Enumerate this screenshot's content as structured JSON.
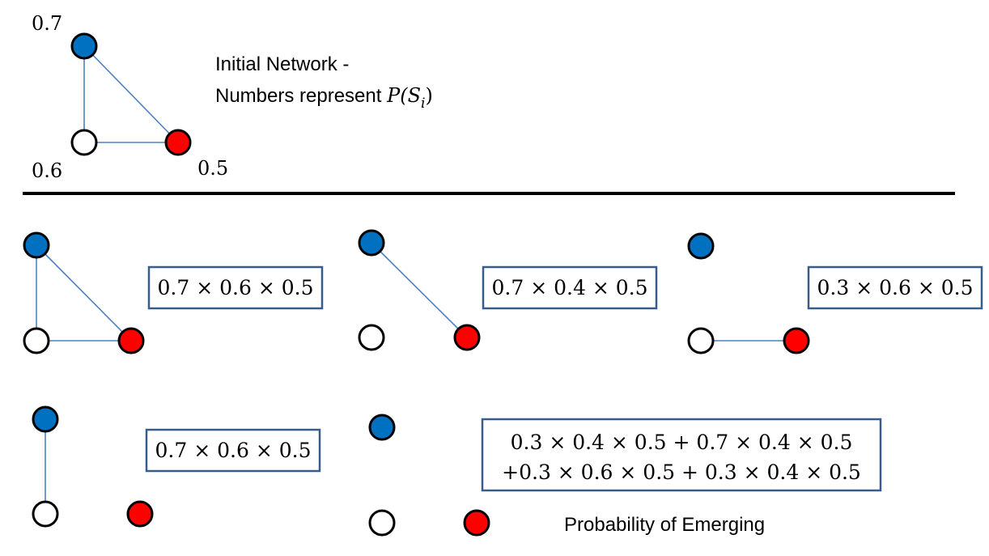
{
  "initial_network": {
    "probabilities": {
      "blue": "0.7",
      "white": "0.6",
      "red": "0.5"
    },
    "caption_line1": "Initial Network -",
    "caption_line2_text": "Numbers represent ",
    "caption_line2_math": "P(S",
    "caption_line2_sub": "i",
    "caption_line2_close": ")"
  },
  "scenarios": [
    {
      "expression": "0.7 × 0.6 × 0.5"
    },
    {
      "expression": "0.7 × 0.4 × 0.5"
    },
    {
      "expression": "0.3 × 0.6 × 0.5"
    },
    {
      "expression": "0.7 × 0.6 × 0.5"
    },
    {
      "expression_line1": "0.3 × 0.4 × 0.5 + 0.7 × 0.4 × 0.5",
      "expression_line2": "+0.3 × 0.6 × 0.5 + 0.3 × 0.4 × 0.5",
      "caption": "Probability of Emerging"
    }
  ],
  "colors": {
    "blue": "#0070c0",
    "red": "#ff0000",
    "white": "#ffffff",
    "edge": "#4f81bd",
    "box_border": "#385d8a"
  }
}
